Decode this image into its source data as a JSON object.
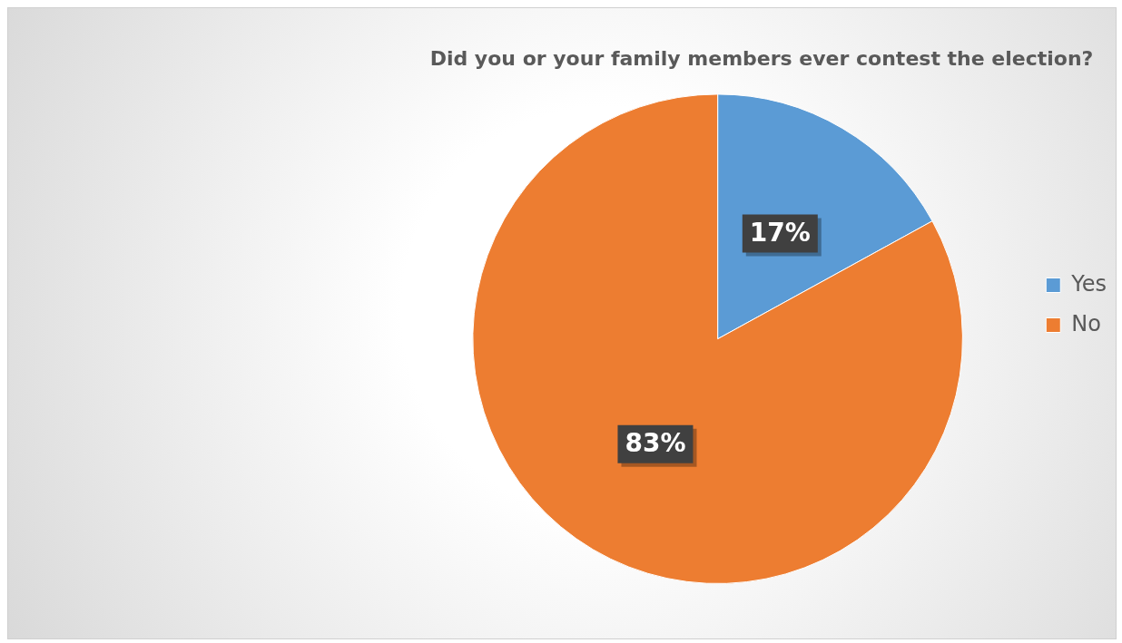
{
  "chart_data": {
    "type": "pie",
    "title": "Did you or your family members ever contest the election?",
    "categories": [
      "Yes",
      "No"
    ],
    "values": [
      17,
      83
    ],
    "colors": [
      "#5b9bd5",
      "#ed7d31"
    ],
    "value_labels": [
      "17%",
      "83%"
    ],
    "legend": "right"
  }
}
